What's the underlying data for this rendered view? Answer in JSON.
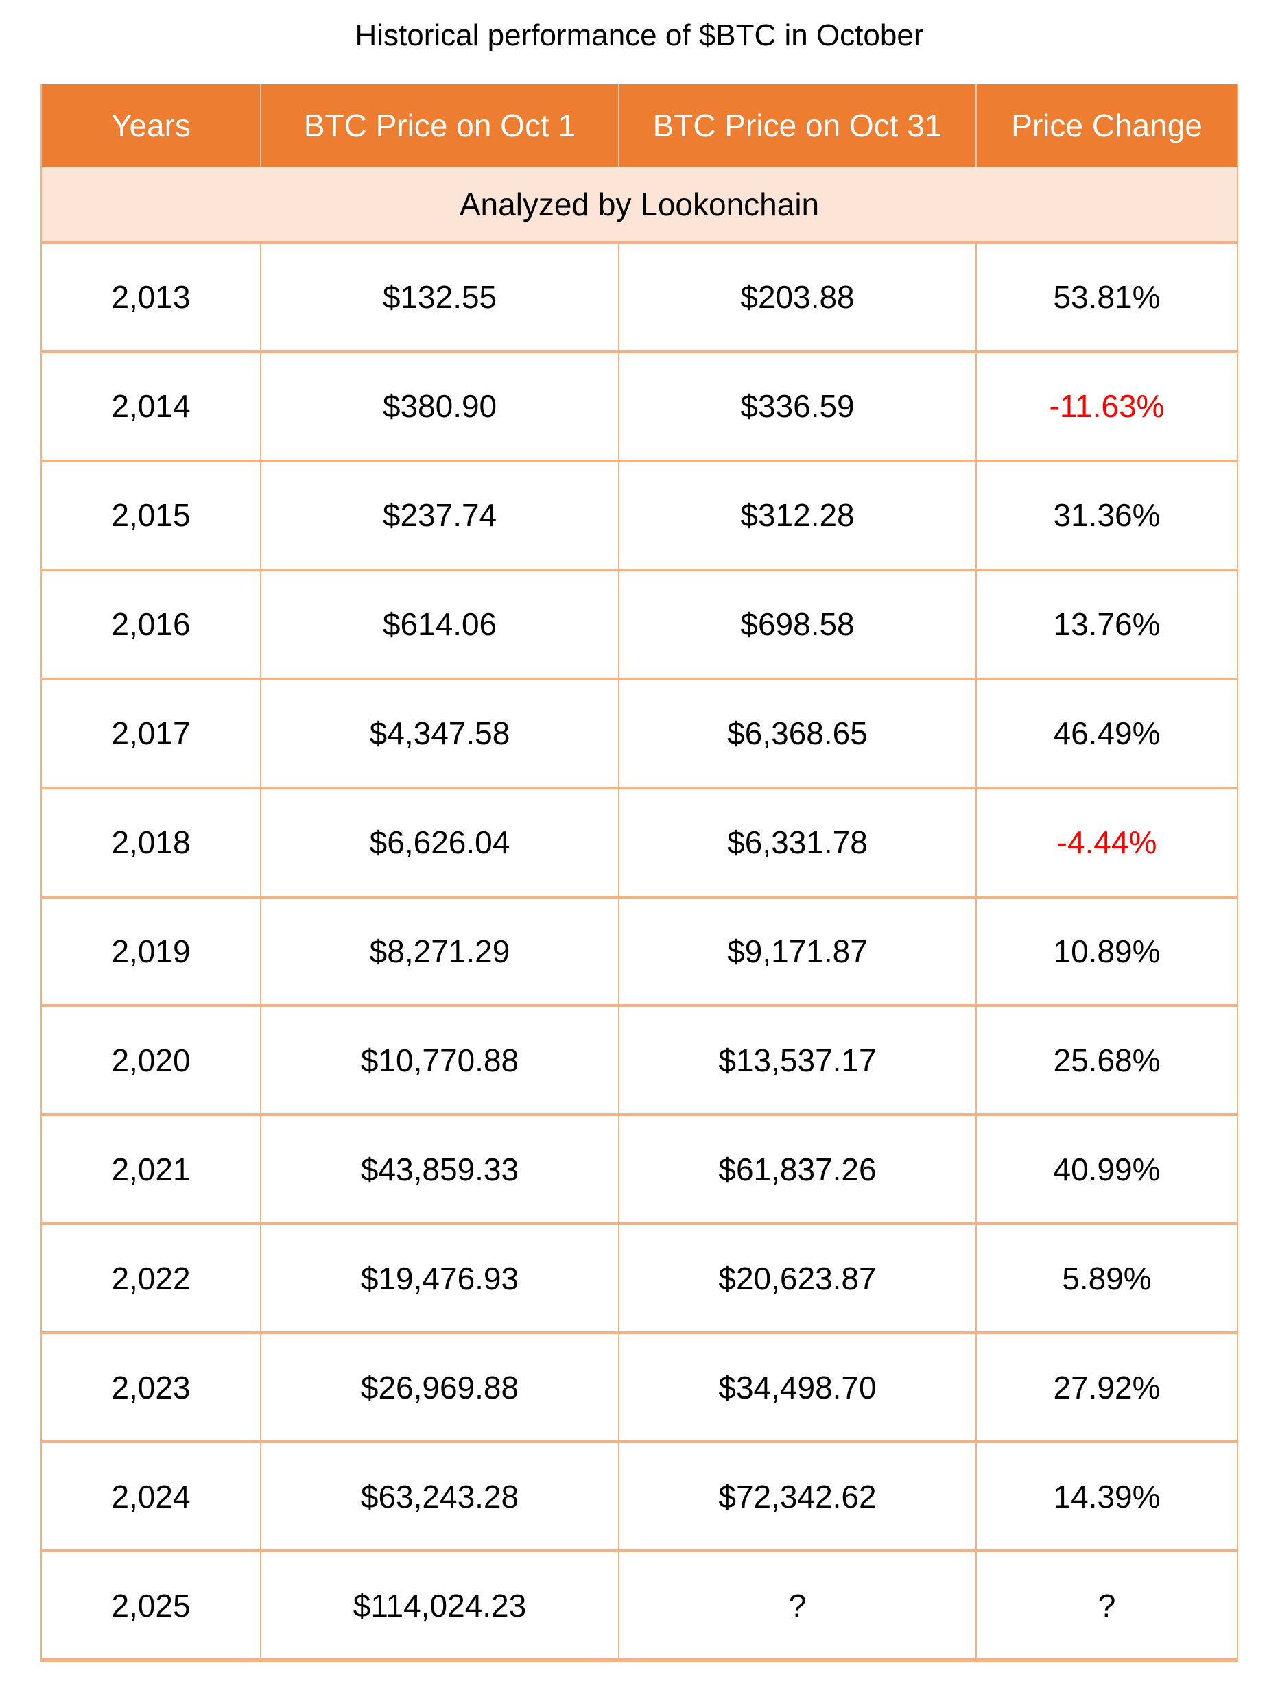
{
  "title": "Historical performance of $BTC in October",
  "colors": {
    "header_bg": "#ED7D31",
    "header_text": "#FFFFFF",
    "header_divider": "#F8CBAD",
    "subtitle_bg": "#FCE4D6",
    "border": "#F4B183",
    "text": "#000000",
    "negative": "#FF0000",
    "background": "#FFFFFF"
  },
  "chart_data": {
    "type": "table",
    "title": "Historical performance of $BTC in October",
    "subtitle": "Analyzed by Lookonchain",
    "columns": [
      "Years",
      "BTC Price on Oct 1",
      "BTC Price on Oct 31",
      "Price Change"
    ],
    "rows": [
      {
        "year": "2,013",
        "oct1": "$132.55",
        "oct31": "$203.88",
        "change": "53.81%",
        "negative": false
      },
      {
        "year": "2,014",
        "oct1": "$380.90",
        "oct31": "$336.59",
        "change": "-11.63%",
        "negative": true
      },
      {
        "year": "2,015",
        "oct1": "$237.74",
        "oct31": "$312.28",
        "change": "31.36%",
        "negative": false
      },
      {
        "year": "2,016",
        "oct1": "$614.06",
        "oct31": "$698.58",
        "change": "13.76%",
        "negative": false
      },
      {
        "year": "2,017",
        "oct1": "$4,347.58",
        "oct31": "$6,368.65",
        "change": "46.49%",
        "negative": false
      },
      {
        "year": "2,018",
        "oct1": "$6,626.04",
        "oct31": "$6,331.78",
        "change": "-4.44%",
        "negative": true
      },
      {
        "year": "2,019",
        "oct1": "$8,271.29",
        "oct31": "$9,171.87",
        "change": "10.89%",
        "negative": false
      },
      {
        "year": "2,020",
        "oct1": "$10,770.88",
        "oct31": "$13,537.17",
        "change": "25.68%",
        "negative": false
      },
      {
        "year": "2,021",
        "oct1": "$43,859.33",
        "oct31": "$61,837.26",
        "change": "40.99%",
        "negative": false
      },
      {
        "year": "2,022",
        "oct1": "$19,476.93",
        "oct31": "$20,623.87",
        "change": "5.89%",
        "negative": false
      },
      {
        "year": "2,023",
        "oct1": "$26,969.88",
        "oct31": "$34,498.70",
        "change": "27.92%",
        "negative": false
      },
      {
        "year": "2,024",
        "oct1": "$63,243.28",
        "oct31": "$72,342.62",
        "change": "14.39%",
        "negative": false
      },
      {
        "year": "2,025",
        "oct1": "$114,024.23",
        "oct31": "?",
        "change": "?",
        "negative": false
      }
    ]
  }
}
